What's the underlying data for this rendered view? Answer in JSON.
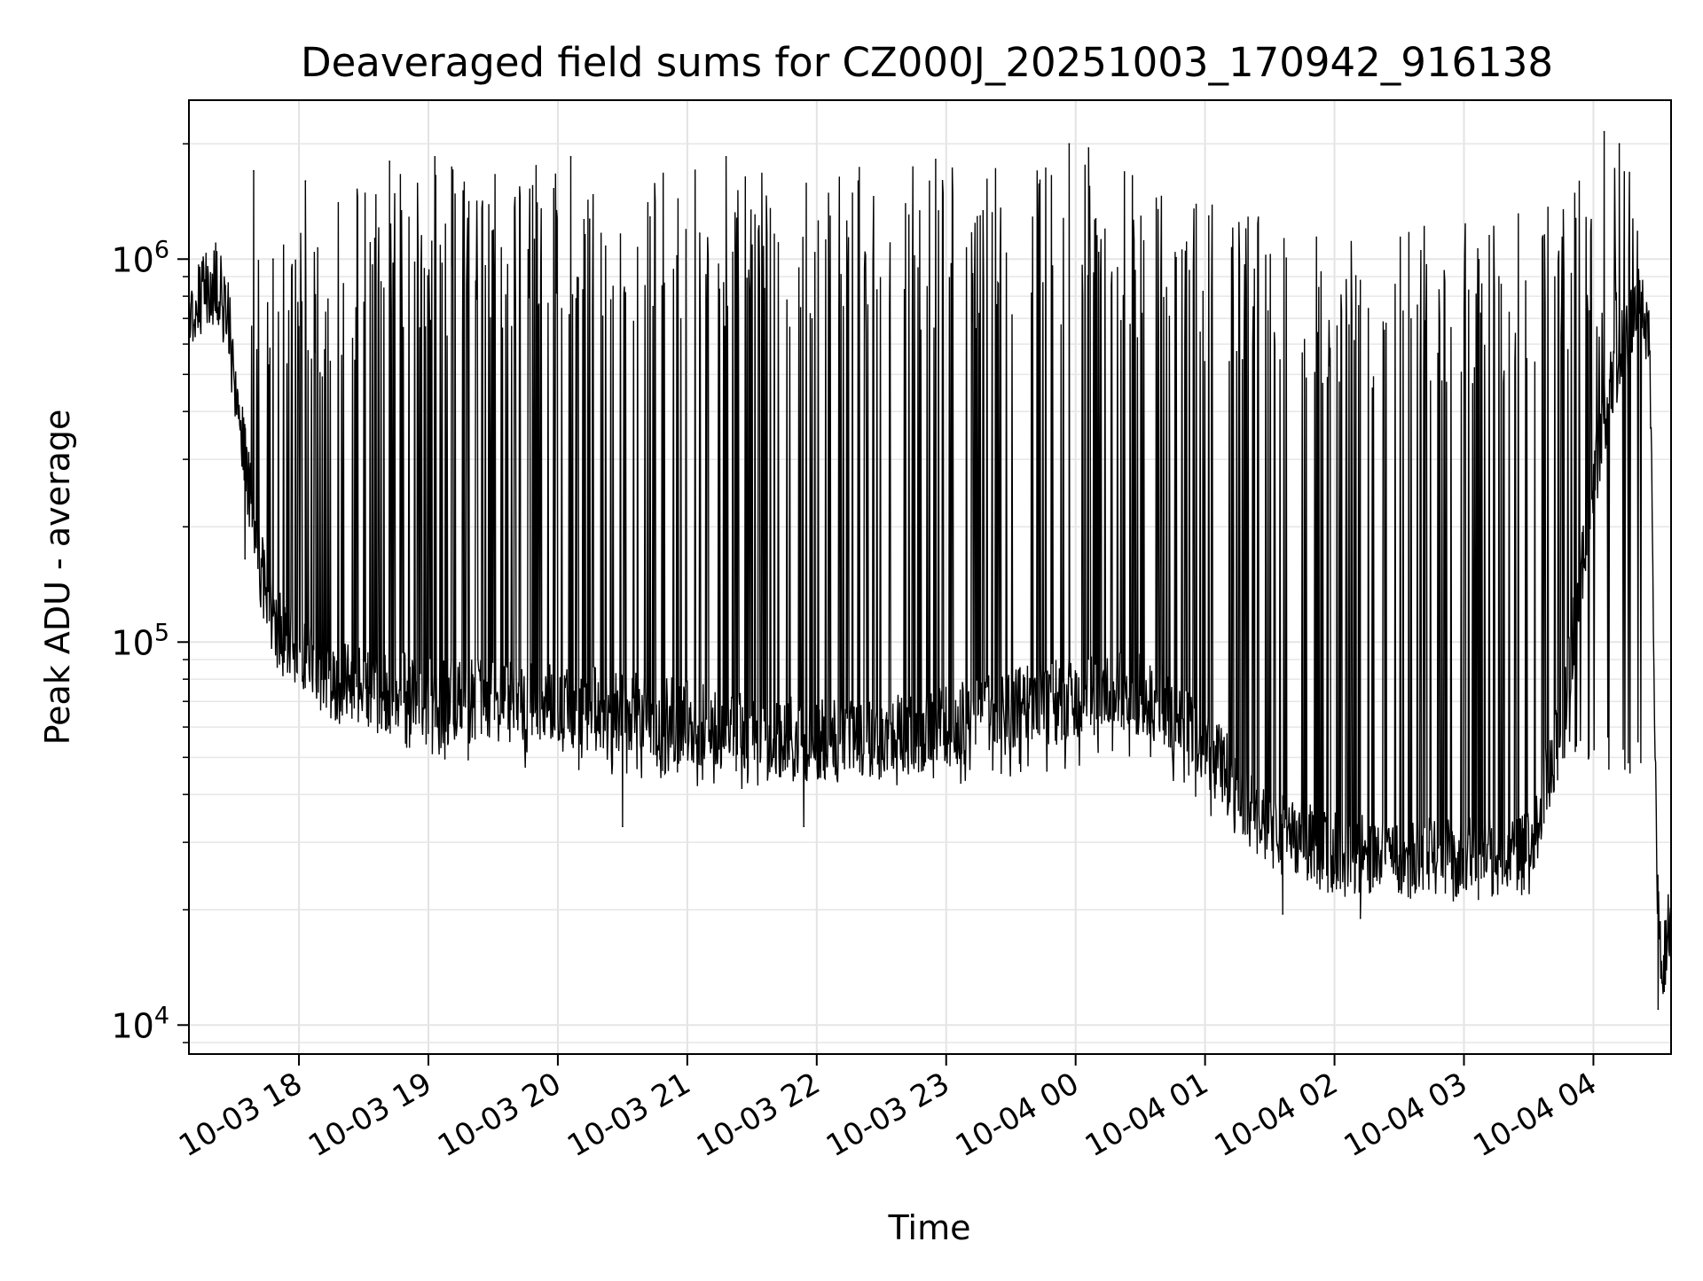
{
  "chart_data": {
    "type": "line",
    "title": "Deaveraged field sums for CZ000J_20251003_170942_916138",
    "xlabel": "Time",
    "ylabel": "Peak ADU - average",
    "xlim": [
      "2025-10-03 17:09",
      "2025-10-04 04:36"
    ],
    "ylim": [
      8400,
      2600000
    ],
    "yscale": "log",
    "grid": true,
    "legend": "none",
    "line_color": "#000000",
    "x_ticks": [
      "2025-10-03 18:00",
      "2025-10-03 19:00",
      "2025-10-03 20:00",
      "2025-10-03 21:00",
      "2025-10-03 22:00",
      "2025-10-03 23:00",
      "2025-10-04 00:00",
      "2025-10-04 01:00",
      "2025-10-04 02:00",
      "2025-10-04 03:00",
      "2025-10-04 04:00"
    ],
    "x_tick_labels": [
      "10-03 18",
      "10-03 19",
      "10-03 20",
      "10-03 21",
      "10-03 22",
      "10-03 23",
      "10-04 00",
      "10-04 01",
      "10-04 02",
      "10-04 03",
      "10-04 04"
    ],
    "y_ticks": [
      10000,
      100000,
      1000000
    ],
    "y_tick_labels": [
      {
        "base": "10",
        "exp": "4"
      },
      {
        "base": "10",
        "exp": "5"
      },
      {
        "base": "10",
        "exp": "6"
      }
    ],
    "series": [
      {
        "baseline": {
          "x": [
            "2025-10-03 17:09",
            "2025-10-03 17:15",
            "2025-10-03 17:22",
            "2025-10-03 17:27",
            "2025-10-03 17:32",
            "2025-10-03 17:37",
            "2025-10-03 17:42",
            "2025-10-03 17:47",
            "2025-10-03 17:53",
            "2025-10-03 18:00",
            "2025-10-03 18:15",
            "2025-10-03 18:30",
            "2025-10-03 19:00",
            "2025-10-03 19:30",
            "2025-10-03 20:00",
            "2025-10-03 20:30",
            "2025-10-03 21:00",
            "2025-10-03 21:30",
            "2025-10-03 22:00",
            "2025-10-03 22:30",
            "2025-10-03 23:00",
            "2025-10-03 23:30",
            "2025-10-04 00:00",
            "2025-10-04 00:30",
            "2025-10-04 00:50",
            "2025-10-04 01:10",
            "2025-10-04 01:30",
            "2025-10-04 02:00",
            "2025-10-04 02:30",
            "2025-10-04 03:00",
            "2025-10-04 03:30",
            "2025-10-04 03:45",
            "2025-10-04 03:55",
            "2025-10-04 04:05",
            "2025-10-04 04:15",
            "2025-10-04 04:20",
            "2025-10-04 04:23",
            "2025-10-04 04:26",
            "2025-10-04 04:28",
            "2025-10-04 04:30",
            "2025-10-04 04:32",
            "2025-10-04 04:34",
            "2025-10-04 04:36"
          ],
          "y": [
            760000,
            820000,
            880000,
            700000,
            380000,
            250000,
            160000,
            120000,
            100000,
            92000,
            80000,
            75000,
            72000,
            70000,
            68000,
            66000,
            62000,
            58000,
            55000,
            56000,
            60000,
            66000,
            72000,
            75000,
            65000,
            45000,
            32000,
            28000,
            27000,
            27000,
            28000,
            60000,
            160000,
            400000,
            620000,
            780000,
            800000,
            600000,
            100000,
            18000,
            14000,
            16000,
            20000
          ]
        },
        "peak_envelope": {
          "x": [
            "2025-10-03 17:09",
            "2025-10-03 17:30",
            "2025-10-03 18:00",
            "2025-10-03 18:30",
            "2025-10-03 19:00",
            "2025-10-03 20:00",
            "2025-10-03 21:00",
            "2025-10-03 22:00",
            "2025-10-03 23:00",
            "2025-10-04 00:00",
            "2025-10-04 00:30",
            "2025-10-04 01:00",
            "2025-10-04 01:30",
            "2025-10-04 02:00",
            "2025-10-04 03:00",
            "2025-10-04 03:30",
            "2025-10-04 04:00",
            "2025-10-04 04:15",
            "2025-10-04 04:25"
          ],
          "y": [
            950000,
            1000000,
            1200000,
            1600000,
            1750000,
            1800000,
            1750000,
            1750000,
            1850000,
            1900000,
            1650000,
            1500000,
            1300000,
            1250000,
            1250000,
            1350000,
            1700000,
            2000000,
            1300000
          ]
        },
        "trough_envelope": {
          "x": [
            "2025-10-03 17:40",
            "2025-10-03 18:00",
            "2025-10-03 19:00",
            "2025-10-03 20:00",
            "2025-10-03 21:00",
            "2025-10-03 22:00",
            "2025-10-03 23:00",
            "2025-10-04 00:00",
            "2025-10-04 00:30",
            "2025-10-04 01:00",
            "2025-10-04 01:30",
            "2025-10-04 02:00",
            "2025-10-04 02:30",
            "2025-10-04 03:00",
            "2025-10-04 03:30",
            "2025-10-04 03:45"
          ],
          "y": [
            180000,
            70000,
            50000,
            45000,
            42000,
            40000,
            42000,
            47000,
            50000,
            35000,
            25000,
            22000,
            22000,
            23000,
            24000,
            45000
          ]
        },
        "spikes": [
          {
            "x": "2025-10-03 17:39",
            "y": 1700000
          },
          {
            "x": "2025-10-03 17:48",
            "y": 1000000
          },
          {
            "x": "2025-10-03 18:03",
            "y": 1600000
          },
          {
            "x": "2025-10-03 18:42",
            "y": 1800000
          },
          {
            "x": "2025-10-03 19:03",
            "y": 1850000
          },
          {
            "x": "2025-10-03 20:06",
            "y": 1850000
          },
          {
            "x": "2025-10-03 21:18",
            "y": 1850000
          },
          {
            "x": "2025-10-03 23:57",
            "y": 2000000
          },
          {
            "x": "2025-10-04 00:06",
            "y": 1950000
          },
          {
            "x": "2025-10-04 04:05",
            "y": 2150000
          },
          {
            "x": "2025-10-04 04:12",
            "y": 2000000
          }
        ],
        "drops": [
          {
            "x": "2025-10-03 17:35",
            "y": 165000
          },
          {
            "x": "2025-10-03 20:30",
            "y": 33000
          },
          {
            "x": "2025-10-03 21:54",
            "y": 33000
          },
          {
            "x": "2025-10-04 01:36",
            "y": 19500
          },
          {
            "x": "2025-10-04 02:12",
            "y": 19000
          },
          {
            "x": "2025-10-04 04:30",
            "y": 11000
          }
        ]
      }
    ]
  }
}
